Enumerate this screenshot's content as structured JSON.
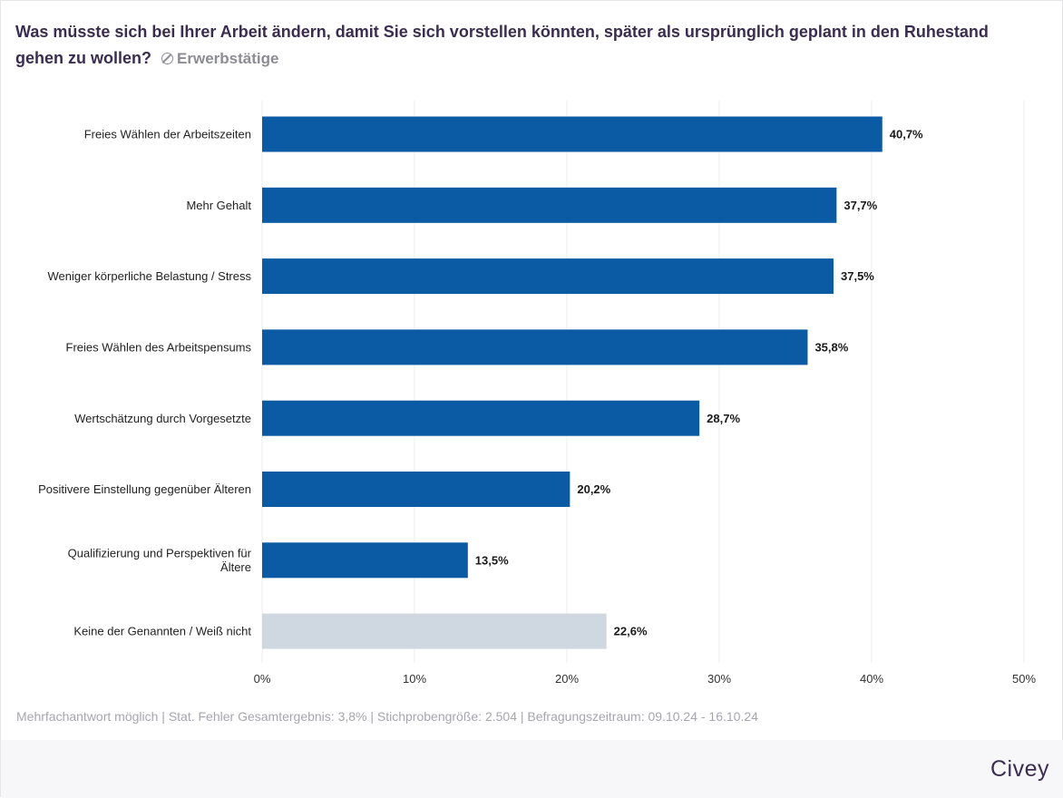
{
  "header": {
    "question": "Was müsste sich bei Ihrer Arbeit ändern, damit Sie sich vorstellen könnten, später als ursprünglich geplant in den Ruhestand gehen zu wollen?",
    "filter_icon": "filter-icon",
    "audience": "Erwerbstätige"
  },
  "chart_data": {
    "type": "bar",
    "orientation": "horizontal",
    "title": "Was müsste sich bei Ihrer Arbeit ändern, damit Sie sich vorstellen könnten, später als ursprünglich geplant in den Ruhestand gehen zu wollen?",
    "xlabel": "",
    "ylabel": "",
    "categories": [
      "Freies Wählen der Arbeitszeiten",
      "Mehr Gehalt",
      "Weniger körperliche Belastung / Stress",
      "Freies Wählen des Arbeitspensums",
      "Wertschätzung durch Vorgesetzte",
      "Positivere Einstellung gegenüber Älteren",
      "Qualifizierung und Perspektiven für Ältere",
      "Keine der Genannten / Weiß nicht"
    ],
    "values": [
      40.7,
      37.7,
      37.5,
      35.8,
      28.7,
      20.2,
      13.5,
      22.6
    ],
    "value_labels": [
      "40,7%",
      "37,7%",
      "37,5%",
      "35,8%",
      "28,7%",
      "20,2%",
      "13,5%",
      "22,6%"
    ],
    "bar_colors": [
      "#0a5aa4",
      "#0a5aa4",
      "#0a5aa4",
      "#0a5aa4",
      "#0a5aa4",
      "#0a5aa4",
      "#0a5aa4",
      "#cfd8e0"
    ],
    "xlim": [
      0,
      50
    ],
    "xticks": [
      0,
      10,
      20,
      30,
      40,
      50
    ],
    "xtick_labels": [
      "0%",
      "10%",
      "20%",
      "30%",
      "40%",
      "50%"
    ],
    "grid": true
  },
  "footnote": "Mehrfachantwort möglich | Stat. Fehler Gesamtergebnis: 3,8% | Stichprobengröße: 2.504 | Befragungszeitraum: 09.10.24 - 16.10.24",
  "brand": "Civey",
  "colors": {
    "primary_bar": "#0a5aa4",
    "neutral_bar": "#cfd8e0",
    "title": "#3a2d4f",
    "muted": "#8c8c94"
  }
}
